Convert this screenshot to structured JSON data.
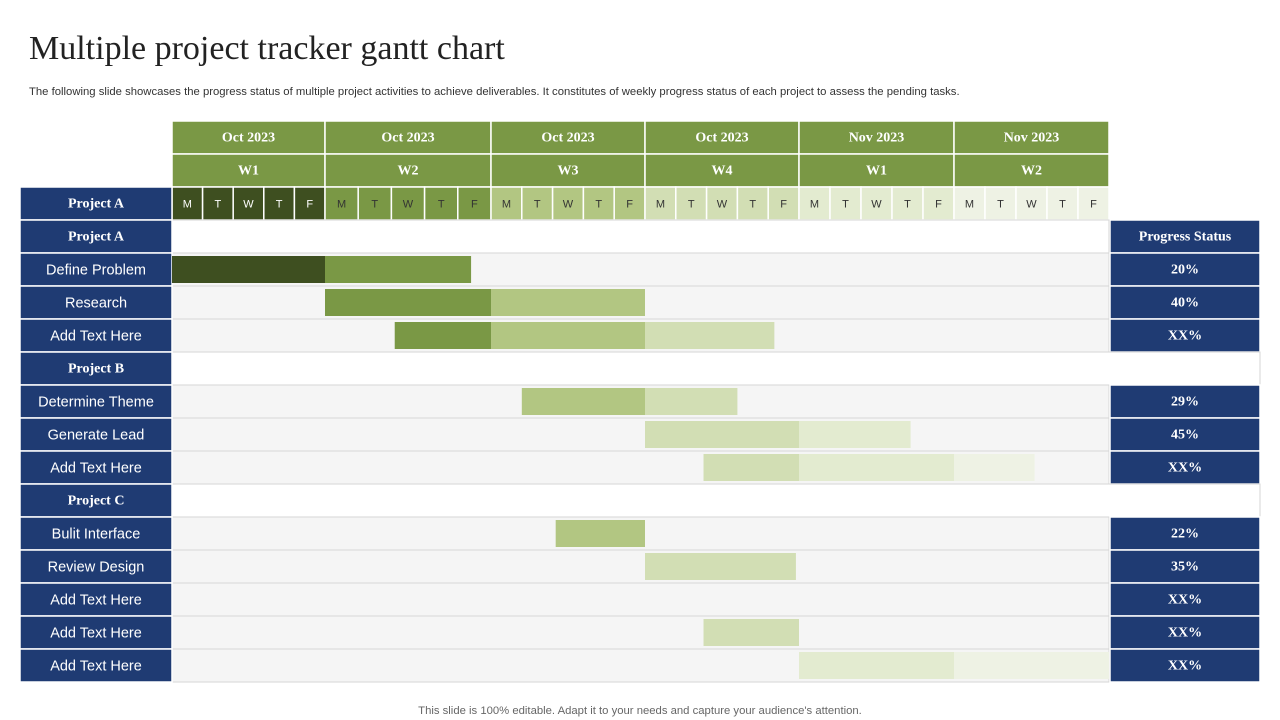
{
  "title": "Multiple project tracker gantt chart",
  "subtitle": "The following slide showcases the progress status of multiple project activities to achieve deliverables. It constitutes of weekly progress status of each project to assess the pending tasks.",
  "footer": "This slide is 100% editable. Adapt it to your needs and capture your audience's attention.",
  "chart_data": {
    "type": "gantt",
    "weeks": [
      {
        "month": "Oct 2023",
        "week": "W1",
        "days": [
          "M",
          "T",
          "W",
          "T",
          "F"
        ],
        "shade": "#3e4f20",
        "day_text_color": "#ffffff"
      },
      {
        "month": "Oct 2023",
        "week": "W2",
        "days": [
          "M",
          "T",
          "W",
          "T",
          "F"
        ],
        "shade": "#7a9845",
        "day_text_color": "#333333"
      },
      {
        "month": "Oct 2023",
        "week": "W3",
        "days": [
          "M",
          "T",
          "W",
          "T",
          "F"
        ],
        "shade": "#b2c682",
        "day_text_color": "#333333"
      },
      {
        "month": "Oct 2023",
        "week": "W4",
        "days": [
          "M",
          "T",
          "W",
          "T",
          "F"
        ],
        "shade": "#d2deb4",
        "day_text_color": "#333333"
      },
      {
        "month": "Nov 2023",
        "week": "W1",
        "days": [
          "M",
          "T",
          "W",
          "T",
          "F"
        ],
        "shade": "#e3ebd0",
        "day_text_color": "#333333"
      },
      {
        "month": "Nov 2023",
        "week": "W2",
        "days": [
          "M",
          "T",
          "W",
          "T",
          "F"
        ],
        "shade": "#eef2e4",
        "day_text_color": "#333333"
      }
    ],
    "day_header_label": "Project A",
    "status_header": "Progress Status",
    "rows": [
      {
        "kind": "group",
        "label": "Project A"
      },
      {
        "kind": "task",
        "label": "Define Problem",
        "start_day": 0,
        "end_day": 9.4,
        "status": "20%"
      },
      {
        "kind": "task",
        "label": "Research",
        "start_day": 5,
        "end_day": 15,
        "status": "40%"
      },
      {
        "kind": "task",
        "label": "Add Text Here",
        "start_day": 7.1,
        "end_day": 19.2,
        "status": "XX%"
      },
      {
        "kind": "group",
        "label": "Project B"
      },
      {
        "kind": "task",
        "label": "Determine Theme",
        "start_day": 11,
        "end_day": 18,
        "status": "29%"
      },
      {
        "kind": "task",
        "label": "Generate Lead",
        "start_day": 15,
        "end_day": 23.6,
        "status": "45%"
      },
      {
        "kind": "task",
        "label": "Add Text Here",
        "start_day": 16.9,
        "end_day": 27.6,
        "status": "XX%"
      },
      {
        "kind": "group",
        "label": "Project C"
      },
      {
        "kind": "task",
        "label": "Bulit Interface",
        "start_day": 12.1,
        "end_day": 15,
        "status": "22%"
      },
      {
        "kind": "task",
        "label": "Review Design",
        "start_day": 15,
        "end_day": 19.9,
        "status": "35%"
      },
      {
        "kind": "task",
        "label": "Add Text Here",
        "status": "XX%"
      },
      {
        "kind": "task",
        "label": "Add Text Here",
        "start_day": 16.9,
        "end_day": 20,
        "status": "XX%"
      },
      {
        "kind": "task",
        "label": "Add Text Here",
        "start_day": 20,
        "end_day": 30,
        "status": "XX%"
      }
    ]
  }
}
